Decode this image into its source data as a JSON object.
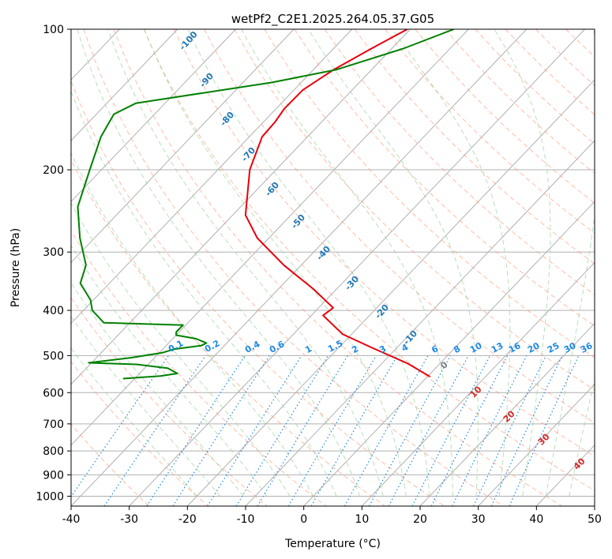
{
  "chart_data": {
    "type": "line",
    "title": "wetPf2_C2E1.2025.264.05.37.G05",
    "xlabel": "Temperature (°C)",
    "ylabel": "Pressure (hPa)",
    "xlim": [
      -40,
      50
    ],
    "ylim": [
      1050,
      100
    ],
    "y_scale": "log",
    "grid": true,
    "x_ticks": [
      -40,
      -30,
      -20,
      -10,
      0,
      10,
      20,
      30,
      40,
      50
    ],
    "y_ticks": [
      100,
      200,
      300,
      400,
      500,
      600,
      700,
      800,
      900,
      1000
    ],
    "colors": {
      "temperature": "#e8000b",
      "dewpoint": "#008000",
      "isotherm_label": "#1f77b4",
      "mixing_ratio": "#1e88e5",
      "dry_adiabat": "#ff9a7a",
      "moist_adiabat": "#9bd19b",
      "moist_adiabat_label": "#d62728",
      "grid": "#b0b0b0"
    },
    "series": [
      {
        "name": "temperature",
        "points": [
          [
            -60.5,
            100
          ],
          [
            -63.5,
            110
          ],
          [
            -66.5,
            122
          ],
          [
            -68.5,
            135
          ],
          [
            -68.6,
            148
          ],
          [
            -68.0,
            158
          ],
          [
            -67.8,
            170
          ],
          [
            -64.5,
            200
          ],
          [
            -57.8,
            250
          ],
          [
            -52.0,
            280
          ],
          [
            -43.0,
            320
          ],
          [
            -34.0,
            360
          ],
          [
            -27.5,
            395
          ],
          [
            -28.0,
            410
          ],
          [
            -25.5,
            425
          ],
          [
            -21.5,
            450
          ],
          [
            -14.5,
            480
          ],
          [
            -5.5,
            520
          ],
          [
            0.5,
            555
          ]
        ]
      },
      {
        "name": "dewpoint",
        "points": [
          [
            -52.5,
            100
          ],
          [
            -58.0,
            110
          ],
          [
            -66.0,
            122
          ],
          [
            -75.0,
            130
          ],
          [
            -95.0,
            144
          ],
          [
            -97.0,
            152
          ],
          [
            -95.5,
            170
          ],
          [
            -92.0,
            200
          ],
          [
            -88.0,
            240
          ],
          [
            -82.5,
            280
          ],
          [
            -77.0,
            320
          ],
          [
            -75.0,
            350
          ],
          [
            -70.5,
            380
          ],
          [
            -68.5,
            400
          ],
          [
            -64.5,
            425
          ],
          [
            -50.5,
            430
          ],
          [
            -50.5,
            445
          ],
          [
            -50.0,
            452
          ],
          [
            -46.0,
            460
          ],
          [
            -43.5,
            470
          ],
          [
            -44.0,
            476
          ],
          [
            -48.0,
            484
          ],
          [
            -49.5,
            493
          ],
          [
            -54.0,
            505
          ],
          [
            -60.5,
            518
          ],
          [
            -52.0,
            522
          ],
          [
            -46.0,
            532
          ],
          [
            -43.5,
            546
          ],
          [
            -46.0,
            553
          ],
          [
            -52.0,
            560
          ]
        ]
      }
    ],
    "isotherm_labels": [
      -100,
      -90,
      -80,
      -70,
      -60,
      -50,
      -40,
      -30,
      -20,
      -10
    ],
    "isotherm_zero_label": "0",
    "mixing_ratio_labels": [
      "0.1",
      "0.2",
      "0.4",
      "0.6",
      "1",
      "1.5",
      "2",
      "3",
      "4",
      "6",
      "8",
      "10",
      "13",
      "16",
      "20",
      "25",
      "30",
      "36"
    ],
    "moist_adiabat_labels": [
      "10",
      "20",
      "30",
      "40"
    ]
  }
}
